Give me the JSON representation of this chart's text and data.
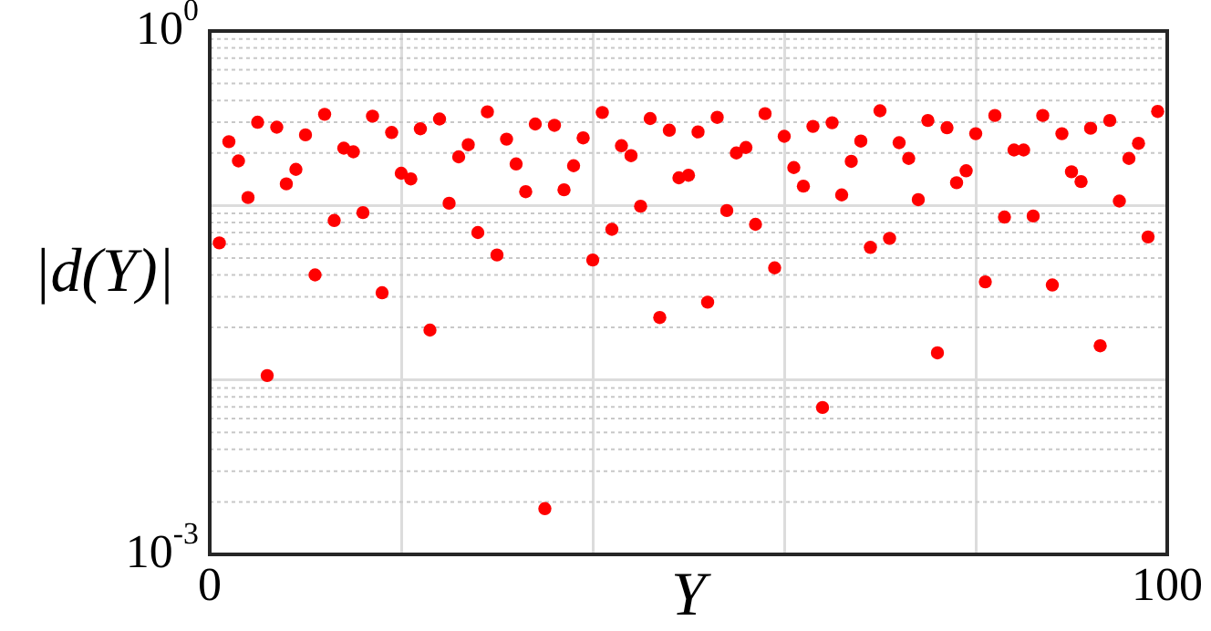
{
  "chart_data": {
    "type": "scatter",
    "xlabel": "Y",
    "ylabel": "|d(Y)|",
    "x": [
      1,
      2,
      3,
      4,
      5,
      6,
      7,
      8,
      9,
      10,
      11,
      12,
      13,
      14,
      15,
      16,
      17,
      18,
      19,
      20,
      21,
      22,
      23,
      24,
      25,
      26,
      27,
      28,
      29,
      30,
      31,
      32,
      33,
      34,
      35,
      36,
      37,
      38,
      39,
      40,
      41,
      42,
      43,
      44,
      45,
      46,
      47,
      48,
      49,
      50,
      51,
      52,
      53,
      54,
      55,
      56,
      57,
      58,
      59,
      60,
      61,
      62,
      63,
      64,
      65,
      66,
      67,
      68,
      69,
      70,
      71,
      72,
      73,
      74,
      75,
      76,
      77,
      78,
      79,
      80,
      81,
      82,
      83,
      84,
      85,
      86,
      87,
      88,
      89,
      90,
      91,
      92,
      93,
      94,
      95,
      96,
      97,
      98,
      99
    ],
    "series": [
      {
        "color": "#ff0000",
        "values": [
          0.061,
          0.232,
          0.18,
          0.111,
          0.3,
          0.0106,
          0.281,
          0.133,
          0.161,
          0.254,
          0.04,
          0.333,
          0.082,
          0.213,
          0.203,
          0.091,
          0.325,
          0.0316,
          0.262,
          0.153,
          0.142,
          0.275,
          0.0193,
          0.313,
          0.103,
          0.19,
          0.223,
          0.07,
          0.344,
          0.052,
          0.24,
          0.173,
          0.12,
          0.293,
          0.00183,
          0.288,
          0.123,
          0.169,
          0.244,
          0.0487,
          0.341,
          0.073,
          0.22,
          0.193,
          0.099,
          0.315,
          0.0228,
          0.27,
          0.144,
          0.149,
          0.264,
          0.0279,
          0.32,
          0.0935,
          0.2,
          0.215,
          0.078,
          0.336,
          0.0439,
          0.249,
          0.165,
          0.129,
          0.284,
          0.00695,
          0.298,
          0.115,
          0.179,
          0.234,
          0.0575,
          0.349,
          0.0648,
          0.229,
          0.186,
          0.108,
          0.307,
          0.0143,
          0.279,
          0.135,
          0.158,
          0.258,
          0.0365,
          0.328,
          0.0858,
          0.208,
          0.208,
          0.087,
          0.328,
          0.035,
          0.258,
          0.156,
          0.137,
          0.277,
          0.0157,
          0.307,
          0.106,
          0.186,
          0.227,
          0.066,
          0.346
        ]
      }
    ],
    "xlim": [
      0,
      100
    ],
    "xticks": [
      0,
      {
        "value": 20,
        "label": null
      },
      {
        "value": 40,
        "label": null
      },
      {
        "value": 60,
        "label": null
      },
      {
        "value": 80,
        "label": null
      },
      100
    ],
    "ylim": [
      0.001,
      1
    ],
    "yticks": [
      {
        "value": 0.001,
        "label": "10$^{-3}$"
      },
      {
        "value": 0.01,
        "label": null
      },
      {
        "value": 0.1,
        "label": null
      },
      {
        "value": 1,
        "label": "10$^{0}$"
      }
    ],
    "log": "y",
    "grid": true,
    "marker": "circle"
  }
}
